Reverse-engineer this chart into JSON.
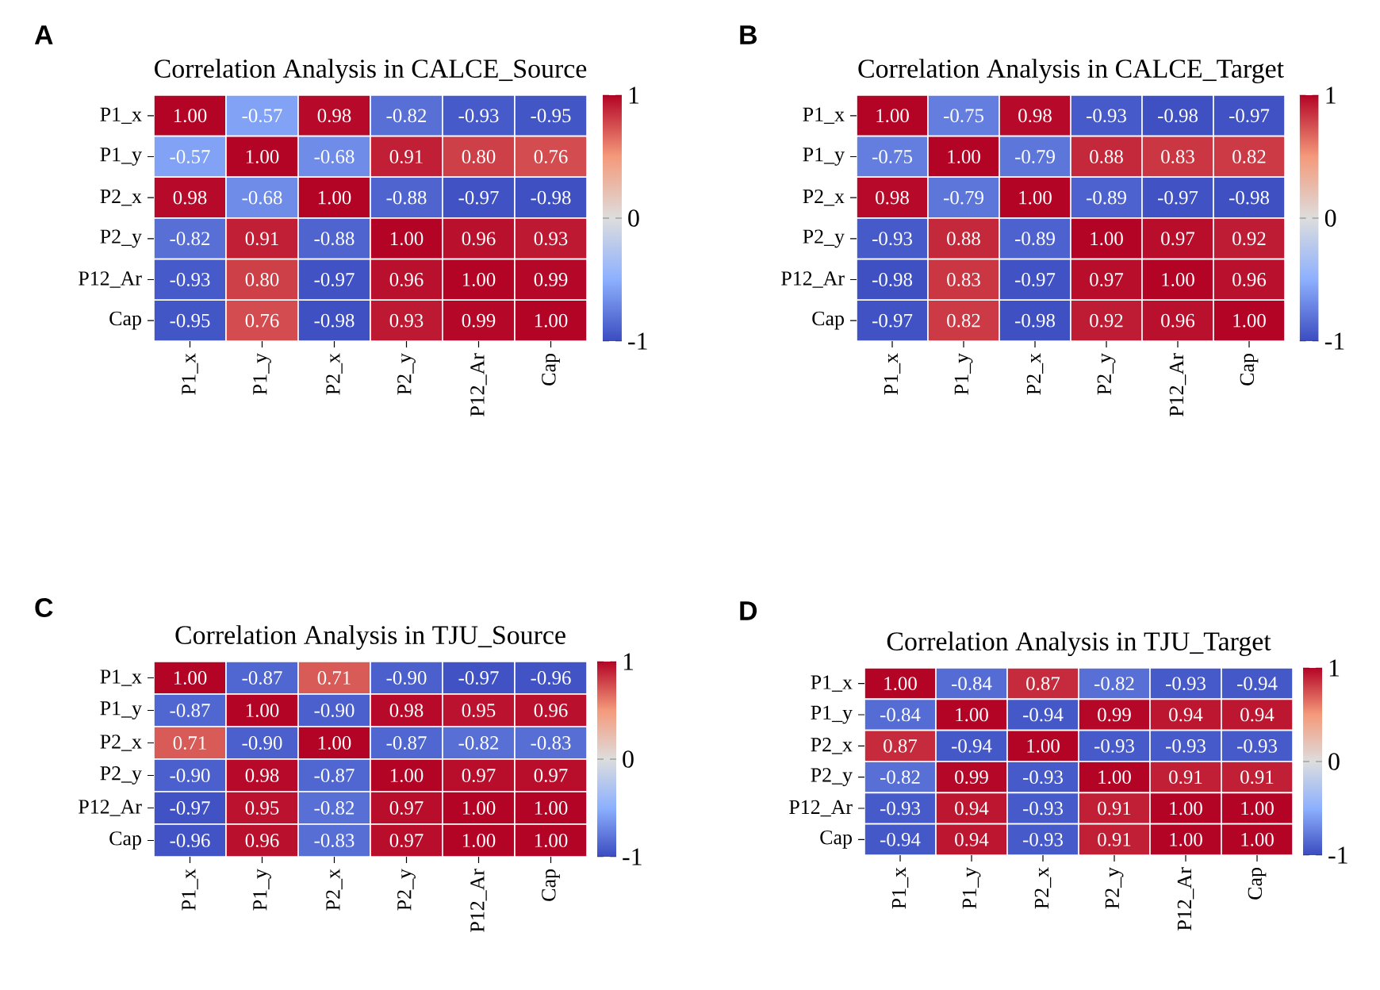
{
  "chart_data": [
    {
      "type": "heatmap",
      "title": "Correlation Analysis in CALCE_Source",
      "annotations": [
        "A"
      ],
      "categories": [
        "P1_x",
        "P1_y",
        "P2_x",
        "P2_y",
        "P12_Ar",
        "Cap"
      ],
      "y_categories": [
        "P1_x",
        "P1_y",
        "P2_x",
        "P2_y",
        "P12_Ar",
        "Cap"
      ],
      "cells": [
        [
          1.0,
          -0.57,
          0.98,
          -0.82,
          -0.93,
          -0.95
        ],
        [
          -0.57,
          1.0,
          -0.68,
          0.91,
          0.8,
          0.76
        ],
        [
          0.98,
          -0.68,
          1.0,
          -0.88,
          -0.97,
          -0.98
        ],
        [
          -0.82,
          0.91,
          -0.88,
          1.0,
          0.96,
          0.93
        ],
        [
          -0.93,
          0.8,
          -0.97,
          0.96,
          1.0,
          0.99
        ],
        [
          -0.95,
          0.76,
          -0.98,
          0.93,
          0.99,
          1.0
        ]
      ],
      "cell_labels": [
        [
          "1.00",
          "-0.57",
          "0.98",
          "-0.82",
          "-0.93",
          "-0.95"
        ],
        [
          "-0.57",
          "1.00",
          "-0.68",
          "0.91",
          "0.80",
          "0.76"
        ],
        [
          "0.98",
          "-0.68",
          "1.00",
          "-0.88",
          "-0.97",
          "-0.98"
        ],
        [
          "-0.82",
          "0.91",
          "-0.88",
          "1.00",
          "0.96",
          "0.93"
        ],
        [
          "-0.93",
          "0.80",
          "-0.97",
          "0.96",
          "1.00",
          "0.99"
        ],
        [
          "-0.95",
          "0.76",
          "-0.98",
          "0.93",
          "0.99",
          "1.00"
        ]
      ],
      "clim": [
        -1,
        1
      ],
      "cticks": [
        -1,
        0,
        1
      ]
    },
    {
      "type": "heatmap",
      "title": "Correlation Analysis in CALCE_Target",
      "annotations": [
        "B"
      ],
      "categories": [
        "P1_x",
        "P1_y",
        "P2_x",
        "P2_y",
        "P12_Ar",
        "Cap"
      ],
      "y_categories": [
        "P1_x",
        "P1_y",
        "P2_x",
        "P2_y",
        "P12_Ar",
        "Cap"
      ],
      "cells": [
        [
          1.0,
          -0.75,
          0.98,
          -0.93,
          -0.98,
          -0.97
        ],
        [
          -0.75,
          1.0,
          -0.79,
          0.88,
          0.83,
          0.82
        ],
        [
          0.98,
          -0.79,
          1.0,
          -0.89,
          -0.97,
          -0.98
        ],
        [
          -0.93,
          0.88,
          -0.89,
          1.0,
          0.97,
          0.92
        ],
        [
          -0.98,
          0.83,
          -0.97,
          0.97,
          1.0,
          0.96
        ],
        [
          -0.97,
          0.82,
          -0.98,
          0.92,
          0.96,
          1.0
        ]
      ],
      "cell_labels": [
        [
          "1.00",
          "-0.75",
          "0.98",
          "-0.93",
          "-0.98",
          "-0.97"
        ],
        [
          "-0.75",
          "1.00",
          "-0.79",
          "0.88",
          "0.83",
          "0.82"
        ],
        [
          "0.98",
          "-0.79",
          "1.00",
          "-0.89",
          "-0.97",
          "-0.98"
        ],
        [
          "-0.93",
          "0.88",
          "-0.89",
          "1.00",
          "0.97",
          "0.92"
        ],
        [
          "-0.98",
          "0.83",
          "-0.97",
          "0.97",
          "1.00",
          "0.96"
        ],
        [
          "-0.97",
          "0.82",
          "-0.98",
          "0.92",
          "0.96",
          "1.00"
        ]
      ],
      "clim": [
        -1,
        1
      ],
      "cticks": [
        -1,
        0,
        1
      ]
    },
    {
      "type": "heatmap",
      "title": "Correlation Analysis in TJU_Source",
      "annotations": [
        "C"
      ],
      "categories": [
        "P1_x",
        "P1_y",
        "P2_x",
        "P2_y",
        "P12_Ar",
        "Cap"
      ],
      "y_categories": [
        "P1_x",
        "P1_y",
        "P2_x",
        "P2_y",
        "P12_Ar",
        "Cap"
      ],
      "cells": [
        [
          1.0,
          -0.87,
          0.71,
          -0.9,
          -0.97,
          -0.96
        ],
        [
          -0.87,
          1.0,
          -0.9,
          0.98,
          0.95,
          0.96
        ],
        [
          0.71,
          -0.9,
          1.0,
          -0.87,
          -0.82,
          -0.83
        ],
        [
          -0.9,
          0.98,
          -0.87,
          1.0,
          0.97,
          0.97
        ],
        [
          -0.97,
          0.95,
          -0.82,
          0.97,
          1.0,
          1.0
        ],
        [
          -0.96,
          0.96,
          -0.83,
          0.97,
          1.0,
          1.0
        ]
      ],
      "cell_labels": [
        [
          "1.00",
          "-0.87",
          "0.71",
          "-0.90",
          "-0.97",
          "-0.96"
        ],
        [
          "-0.87",
          "1.00",
          "-0.90",
          "0.98",
          "0.95",
          "0.96"
        ],
        [
          "0.71",
          "-0.90",
          "1.00",
          "-0.87",
          "-0.82",
          "-0.83"
        ],
        [
          "-0.90",
          "0.98",
          "-0.87",
          "1.00",
          "0.97",
          "0.97"
        ],
        [
          "-0.97",
          "0.95",
          "-0.82",
          "0.97",
          "1.00",
          "1.00"
        ],
        [
          "-0.96",
          "0.96",
          "-0.83",
          "0.97",
          "1.00",
          "1.00"
        ]
      ],
      "clim": [
        -1,
        1
      ],
      "cticks": [
        -1,
        0,
        1
      ]
    },
    {
      "type": "heatmap",
      "title": "Correlation Analysis in TJU_Target",
      "annotations": [
        "D"
      ],
      "categories": [
        "P1_x",
        "P1_y",
        "P2_x",
        "P2_y",
        "P12_Ar",
        "Cap"
      ],
      "y_categories": [
        "P1_x",
        "P1_y",
        "P2_x",
        "P2_y",
        "P12_Ar",
        "Cap"
      ],
      "cells": [
        [
          1.0,
          -0.84,
          0.87,
          -0.82,
          -0.93,
          -0.94
        ],
        [
          -0.84,
          1.0,
          -0.94,
          0.99,
          0.94,
          0.94
        ],
        [
          0.87,
          -0.94,
          1.0,
          -0.93,
          -0.93,
          -0.93
        ],
        [
          -0.82,
          0.99,
          -0.93,
          1.0,
          0.91,
          0.91
        ],
        [
          -0.93,
          0.94,
          -0.93,
          0.91,
          1.0,
          1.0
        ],
        [
          -0.94,
          0.94,
          -0.93,
          0.91,
          1.0,
          1.0
        ]
      ],
      "cell_labels": [
        [
          "1.00",
          "-0.84",
          "0.87",
          "-0.82",
          "-0.93",
          "-0.94"
        ],
        [
          "-0.84",
          "1.00",
          "-0.94",
          "0.99",
          "0.94",
          "0.94"
        ],
        [
          "0.87",
          "-0.94",
          "1.00",
          "-0.93",
          "-0.93",
          "-0.93"
        ],
        [
          "-0.82",
          "0.99",
          "-0.93",
          "1.00",
          "0.91",
          "0.91"
        ],
        [
          "-0.93",
          "0.94",
          "-0.93",
          "0.91",
          "1.00",
          "1.00"
        ],
        [
          "-0.94",
          "0.94",
          "-0.93",
          "0.91",
          "1.00",
          "1.00"
        ]
      ],
      "clim": [
        -1,
        1
      ],
      "cticks": [
        -1,
        0,
        1
      ]
    }
  ]
}
